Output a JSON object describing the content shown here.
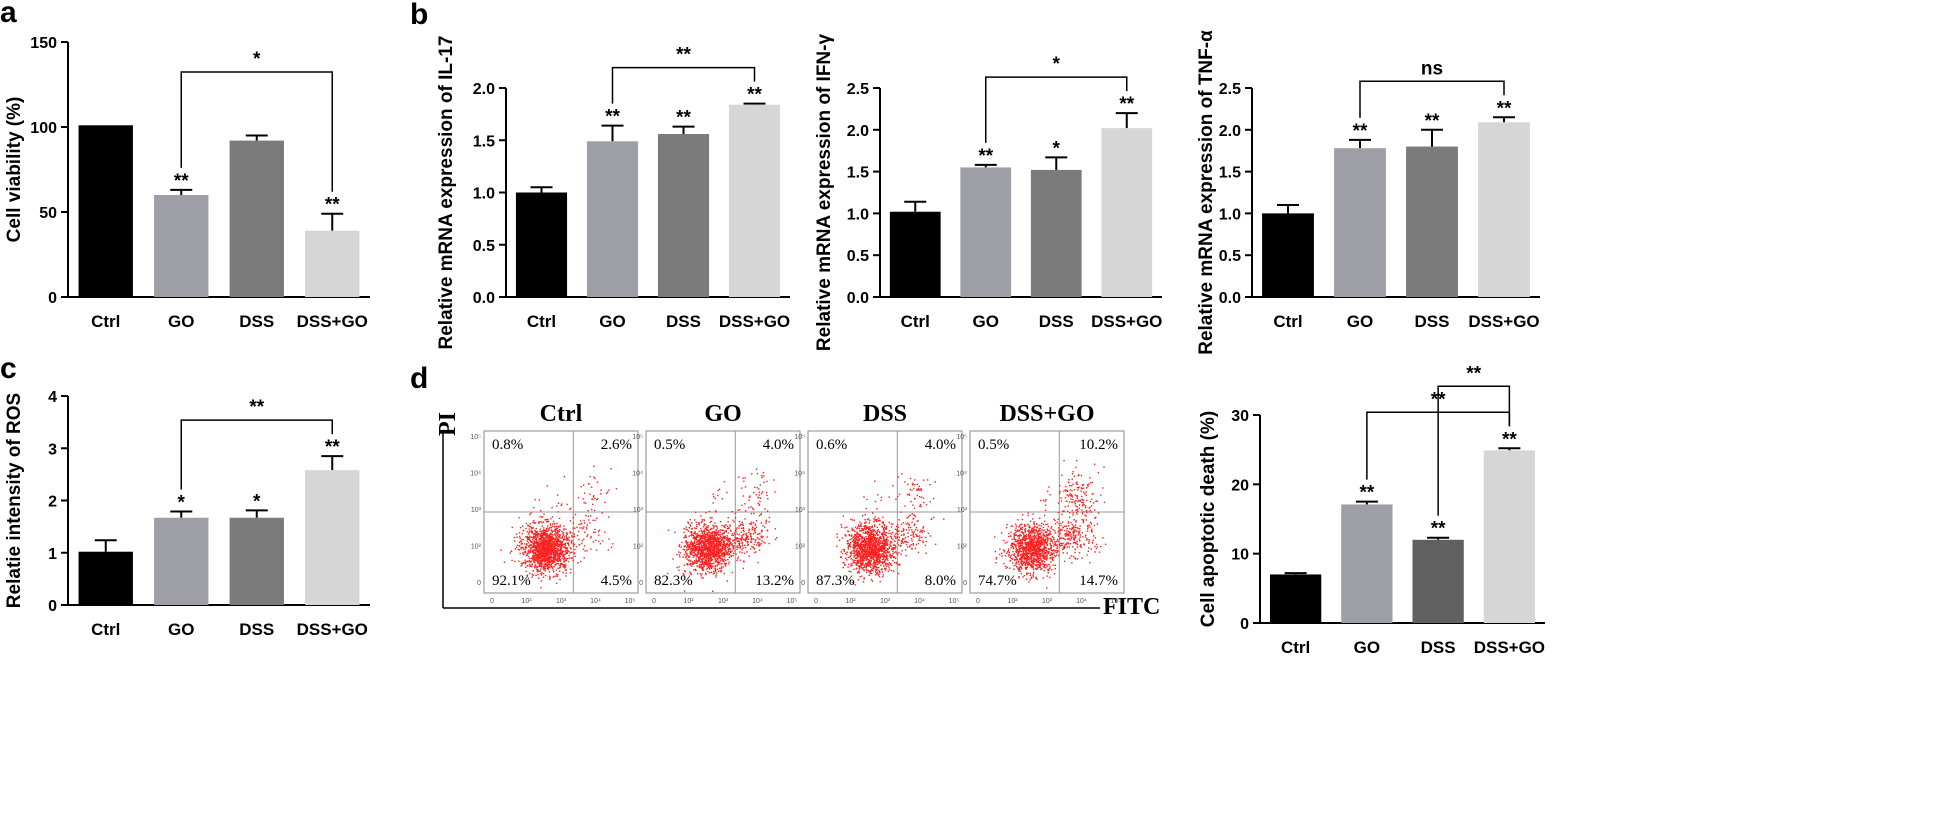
{
  "chart_data": [
    {
      "type": "bar",
      "panel": "a",
      "ylabel": "Cell viability (%)",
      "ylim": [
        0,
        150
      ],
      "yticks": [
        0,
        50,
        100,
        150
      ],
      "categories": [
        "Ctrl",
        "GO",
        "DSS",
        "DSS+GO"
      ],
      "values": [
        101,
        60,
        92,
        39
      ],
      "errors": [
        0,
        3,
        3,
        10
      ],
      "colors": [
        "#000000",
        "#9e9ea6",
        "#7b7b7b",
        "#d6d6d6"
      ],
      "bar_labels": [
        "",
        "**",
        "",
        "**"
      ],
      "brackets": [
        {
          "from": 1,
          "to": 3,
          "label": "*"
        }
      ]
    },
    {
      "type": "bar",
      "panel": "b",
      "ylabel": "Relative mRNA expression of IL-17",
      "ylim": [
        0,
        2.0
      ],
      "yticks": [
        0.0,
        0.5,
        1.0,
        1.5,
        2.0
      ],
      "categories": [
        "Ctrl",
        "GO",
        "DSS",
        "DSS+GO"
      ],
      "values": [
        1.0,
        1.49,
        1.56,
        1.84
      ],
      "errors": [
        0.05,
        0.15,
        0.07,
        0.01
      ],
      "colors": [
        "#000000",
        "#9e9ea6",
        "#7b7b7b",
        "#d6d6d6"
      ],
      "bar_labels": [
        "",
        "**",
        "**",
        "**"
      ],
      "brackets": [
        {
          "from": 1,
          "to": 3,
          "label": "**"
        }
      ]
    },
    {
      "type": "bar",
      "panel": "",
      "ylabel": "Relative mRNA expression of IFN-γ",
      "ylim": [
        0,
        2.5
      ],
      "yticks": [
        0.0,
        0.5,
        1.0,
        1.5,
        2.0,
        2.5
      ],
      "categories": [
        "Ctrl",
        "GO",
        "DSS",
        "DSS+GO"
      ],
      "values": [
        1.02,
        1.55,
        1.52,
        2.02
      ],
      "errors": [
        0.12,
        0.03,
        0.15,
        0.18
      ],
      "colors": [
        "#000000",
        "#9e9ea6",
        "#7b7b7b",
        "#d6d6d6"
      ],
      "bar_labels": [
        "",
        "**",
        "*",
        "**"
      ],
      "brackets": [
        {
          "from": 1,
          "to": 3,
          "label": "*"
        }
      ]
    },
    {
      "type": "bar",
      "panel": "",
      "ylabel": "Relative mRNA expression of TNF-α",
      "ylim": [
        0,
        2.5
      ],
      "yticks": [
        0.0,
        0.5,
        1.0,
        1.5,
        2.0,
        2.5
      ],
      "categories": [
        "Ctrl",
        "GO",
        "DSS",
        "DSS+GO"
      ],
      "values": [
        1.0,
        1.78,
        1.8,
        2.09
      ],
      "errors": [
        0.1,
        0.1,
        0.2,
        0.06
      ],
      "colors": [
        "#000000",
        "#9e9ea6",
        "#7b7b7b",
        "#d6d6d6"
      ],
      "bar_labels": [
        "",
        "**",
        "**",
        "**"
      ],
      "brackets": [
        {
          "from": 1,
          "to": 3,
          "label": "ns"
        }
      ]
    },
    {
      "type": "bar",
      "panel": "c",
      "ylabel": "Relatie intensity of ROS",
      "ylim": [
        0,
        4
      ],
      "yticks": [
        0,
        1,
        2,
        3,
        4
      ],
      "categories": [
        "Ctrl",
        "GO",
        "DSS",
        "DSS+GO"
      ],
      "values": [
        1.02,
        1.67,
        1.67,
        2.58
      ],
      "errors": [
        0.22,
        0.12,
        0.14,
        0.27
      ],
      "colors": [
        "#000000",
        "#9e9ea6",
        "#7b7b7b",
        "#d6d6d6"
      ],
      "bar_labels": [
        "",
        "*",
        "*",
        "**"
      ],
      "brackets": [
        {
          "from": 1,
          "to": 3,
          "label": "**"
        }
      ]
    },
    {
      "type": "bar",
      "panel": "",
      "ylabel": "Cell apoptotic death (%)",
      "ylim": [
        0,
        30
      ],
      "yticks": [
        0,
        10,
        20,
        30
      ],
      "categories": [
        "Ctrl",
        "GO",
        "DSS",
        "DSS+GO"
      ],
      "values": [
        7.0,
        17.1,
        12.0,
        24.9
      ],
      "errors": [
        0.2,
        0.4,
        0.3,
        0.3
      ],
      "colors": [
        "#000000",
        "#9e9ea6",
        "#606060",
        "#d6d6d6"
      ],
      "bar_labels": [
        "",
        "**",
        "**",
        "**"
      ],
      "brackets": [
        {
          "from": 1,
          "to": 3,
          "label": "**"
        },
        {
          "from": 2,
          "to": 3,
          "label": "**"
        }
      ]
    }
  ],
  "flow": {
    "panel": "d",
    "y_axis_label": "PI",
    "x_axis_label": "FITC",
    "tick_labels": [
      "0",
      "10²",
      "10³",
      "10⁴",
      "10⁵"
    ],
    "plots": [
      {
        "title": "Ctrl",
        "ul": "0.8%",
        "ur": "2.6%",
        "ll": "92.1%",
        "lr": "4.5%"
      },
      {
        "title": "GO",
        "ul": "0.5%",
        "ur": "4.0%",
        "ll": "82.3%",
        "lr": "13.2%"
      },
      {
        "title": "DSS",
        "ul": "0.6%",
        "ur": "4.0%",
        "ll": "87.3%",
        "lr": "8.0%"
      },
      {
        "title": "DSS+GO",
        "ul": "0.5%",
        "ur": "10.2%",
        "ll": "74.7%",
        "lr": "14.7%"
      }
    ],
    "dot_color": "#ff2020"
  }
}
